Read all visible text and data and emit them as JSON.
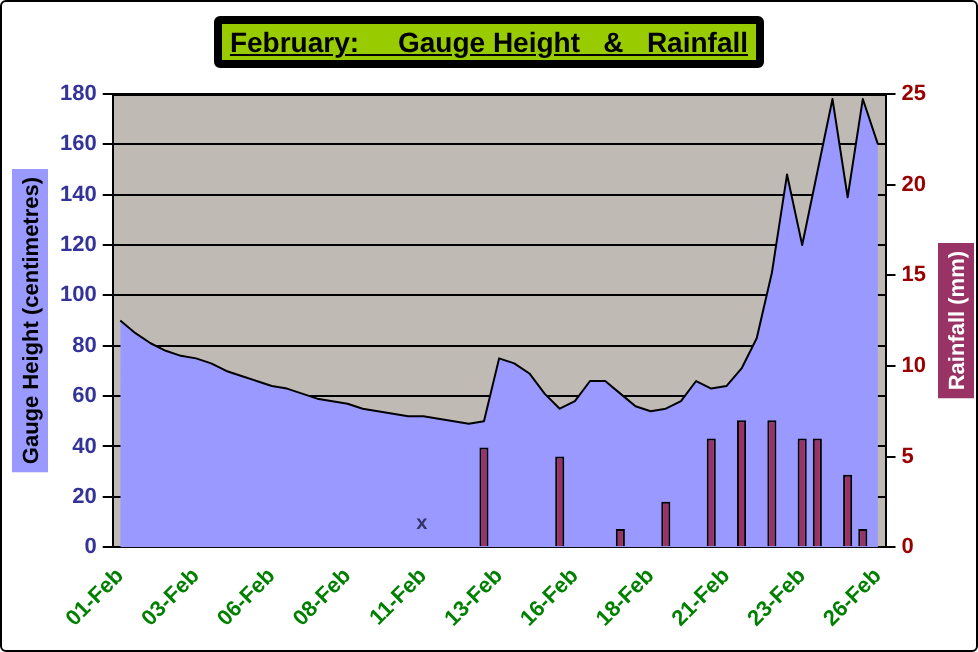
{
  "chart_data": {
    "type": "area",
    "title": "February:     Gauge Height   &   Rainfall",
    "ylabel": "Gauge Height (centimetres)",
    "y2label": "Rainfall (mm)",
    "categories": [
      "01-Feb",
      null,
      null,
      null,
      null,
      "03-Feb",
      null,
      null,
      null,
      null,
      "06-Feb",
      null,
      null,
      null,
      null,
      "08-Feb",
      null,
      null,
      null,
      null,
      "11-Feb",
      null,
      null,
      null,
      null,
      "13-Feb",
      null,
      null,
      null,
      null,
      "16-Feb",
      null,
      null,
      null,
      null,
      "18-Feb",
      null,
      null,
      null,
      null,
      "21-Feb",
      null,
      null,
      null,
      null,
      "23-Feb",
      null,
      null,
      null,
      null,
      "26-Feb"
    ],
    "series": [
      {
        "color": "#9999ff",
        "values": [
          90,
          85,
          81,
          78,
          76,
          75,
          73,
          70,
          68,
          66,
          64,
          63,
          61,
          59,
          58,
          57,
          55,
          54,
          53,
          52,
          52,
          51,
          50,
          49,
          50,
          75,
          73,
          69,
          61,
          55,
          58,
          66,
          66,
          61,
          56,
          54,
          55,
          58,
          66,
          63,
          64,
          71,
          83,
          109,
          148,
          120,
          149,
          178,
          139,
          178,
          160
        ]
      },
      {
        "type": "bar",
        "axis": "y2",
        "color": "#993366",
        "values": [
          null,
          null,
          null,
          null,
          null,
          null,
          null,
          null,
          null,
          null,
          null,
          null,
          null,
          null,
          null,
          null,
          null,
          null,
          null,
          null,
          null,
          null,
          null,
          null,
          5.5,
          null,
          null,
          null,
          null,
          5,
          null,
          null,
          null,
          1,
          null,
          null,
          2.5,
          null,
          null,
          6,
          null,
          7,
          null,
          7,
          null,
          6,
          6,
          null,
          4,
          1,
          null
        ]
      }
    ],
    "ylim": [
      0,
      180
    ],
    "yticks": [
      0,
      20,
      40,
      60,
      80,
      100,
      120,
      140,
      160,
      180
    ],
    "y2lim": [
      0,
      25
    ],
    "y2ticks": [
      0,
      5,
      10,
      15,
      20,
      25
    ],
    "grid": "y",
    "annotations": [
      "x"
    ]
  }
}
